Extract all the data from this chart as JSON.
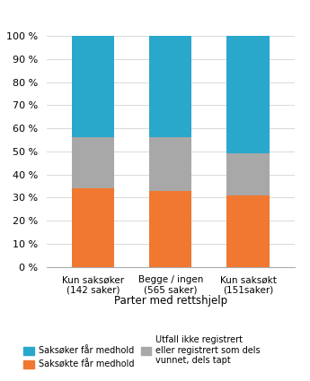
{
  "categories": [
    "Kun saksøker\n(142 saker)",
    "Begge / ingen\n(565 saker)",
    "Kun saksøkt\n(151saker)"
  ],
  "orange_vals": [
    34,
    33,
    31
  ],
  "gray_vals": [
    22,
    23,
    18
  ],
  "blue_vals": [
    44,
    44,
    51
  ],
  "orange_color": "#F07830",
  "gray_color": "#A8A8A8",
  "blue_color": "#29A8CC",
  "xlabel": "Parter med rettshjelp",
  "yticks": [
    0,
    10,
    20,
    30,
    40,
    50,
    60,
    70,
    80,
    90,
    100
  ],
  "legend_labels": [
    "Saksøker får medhold",
    "Saksøkte får medhold",
    "Utfall ikke registrert\neller registrert som dels\nvunnet, dels tapt"
  ],
  "bar_width": 0.55
}
